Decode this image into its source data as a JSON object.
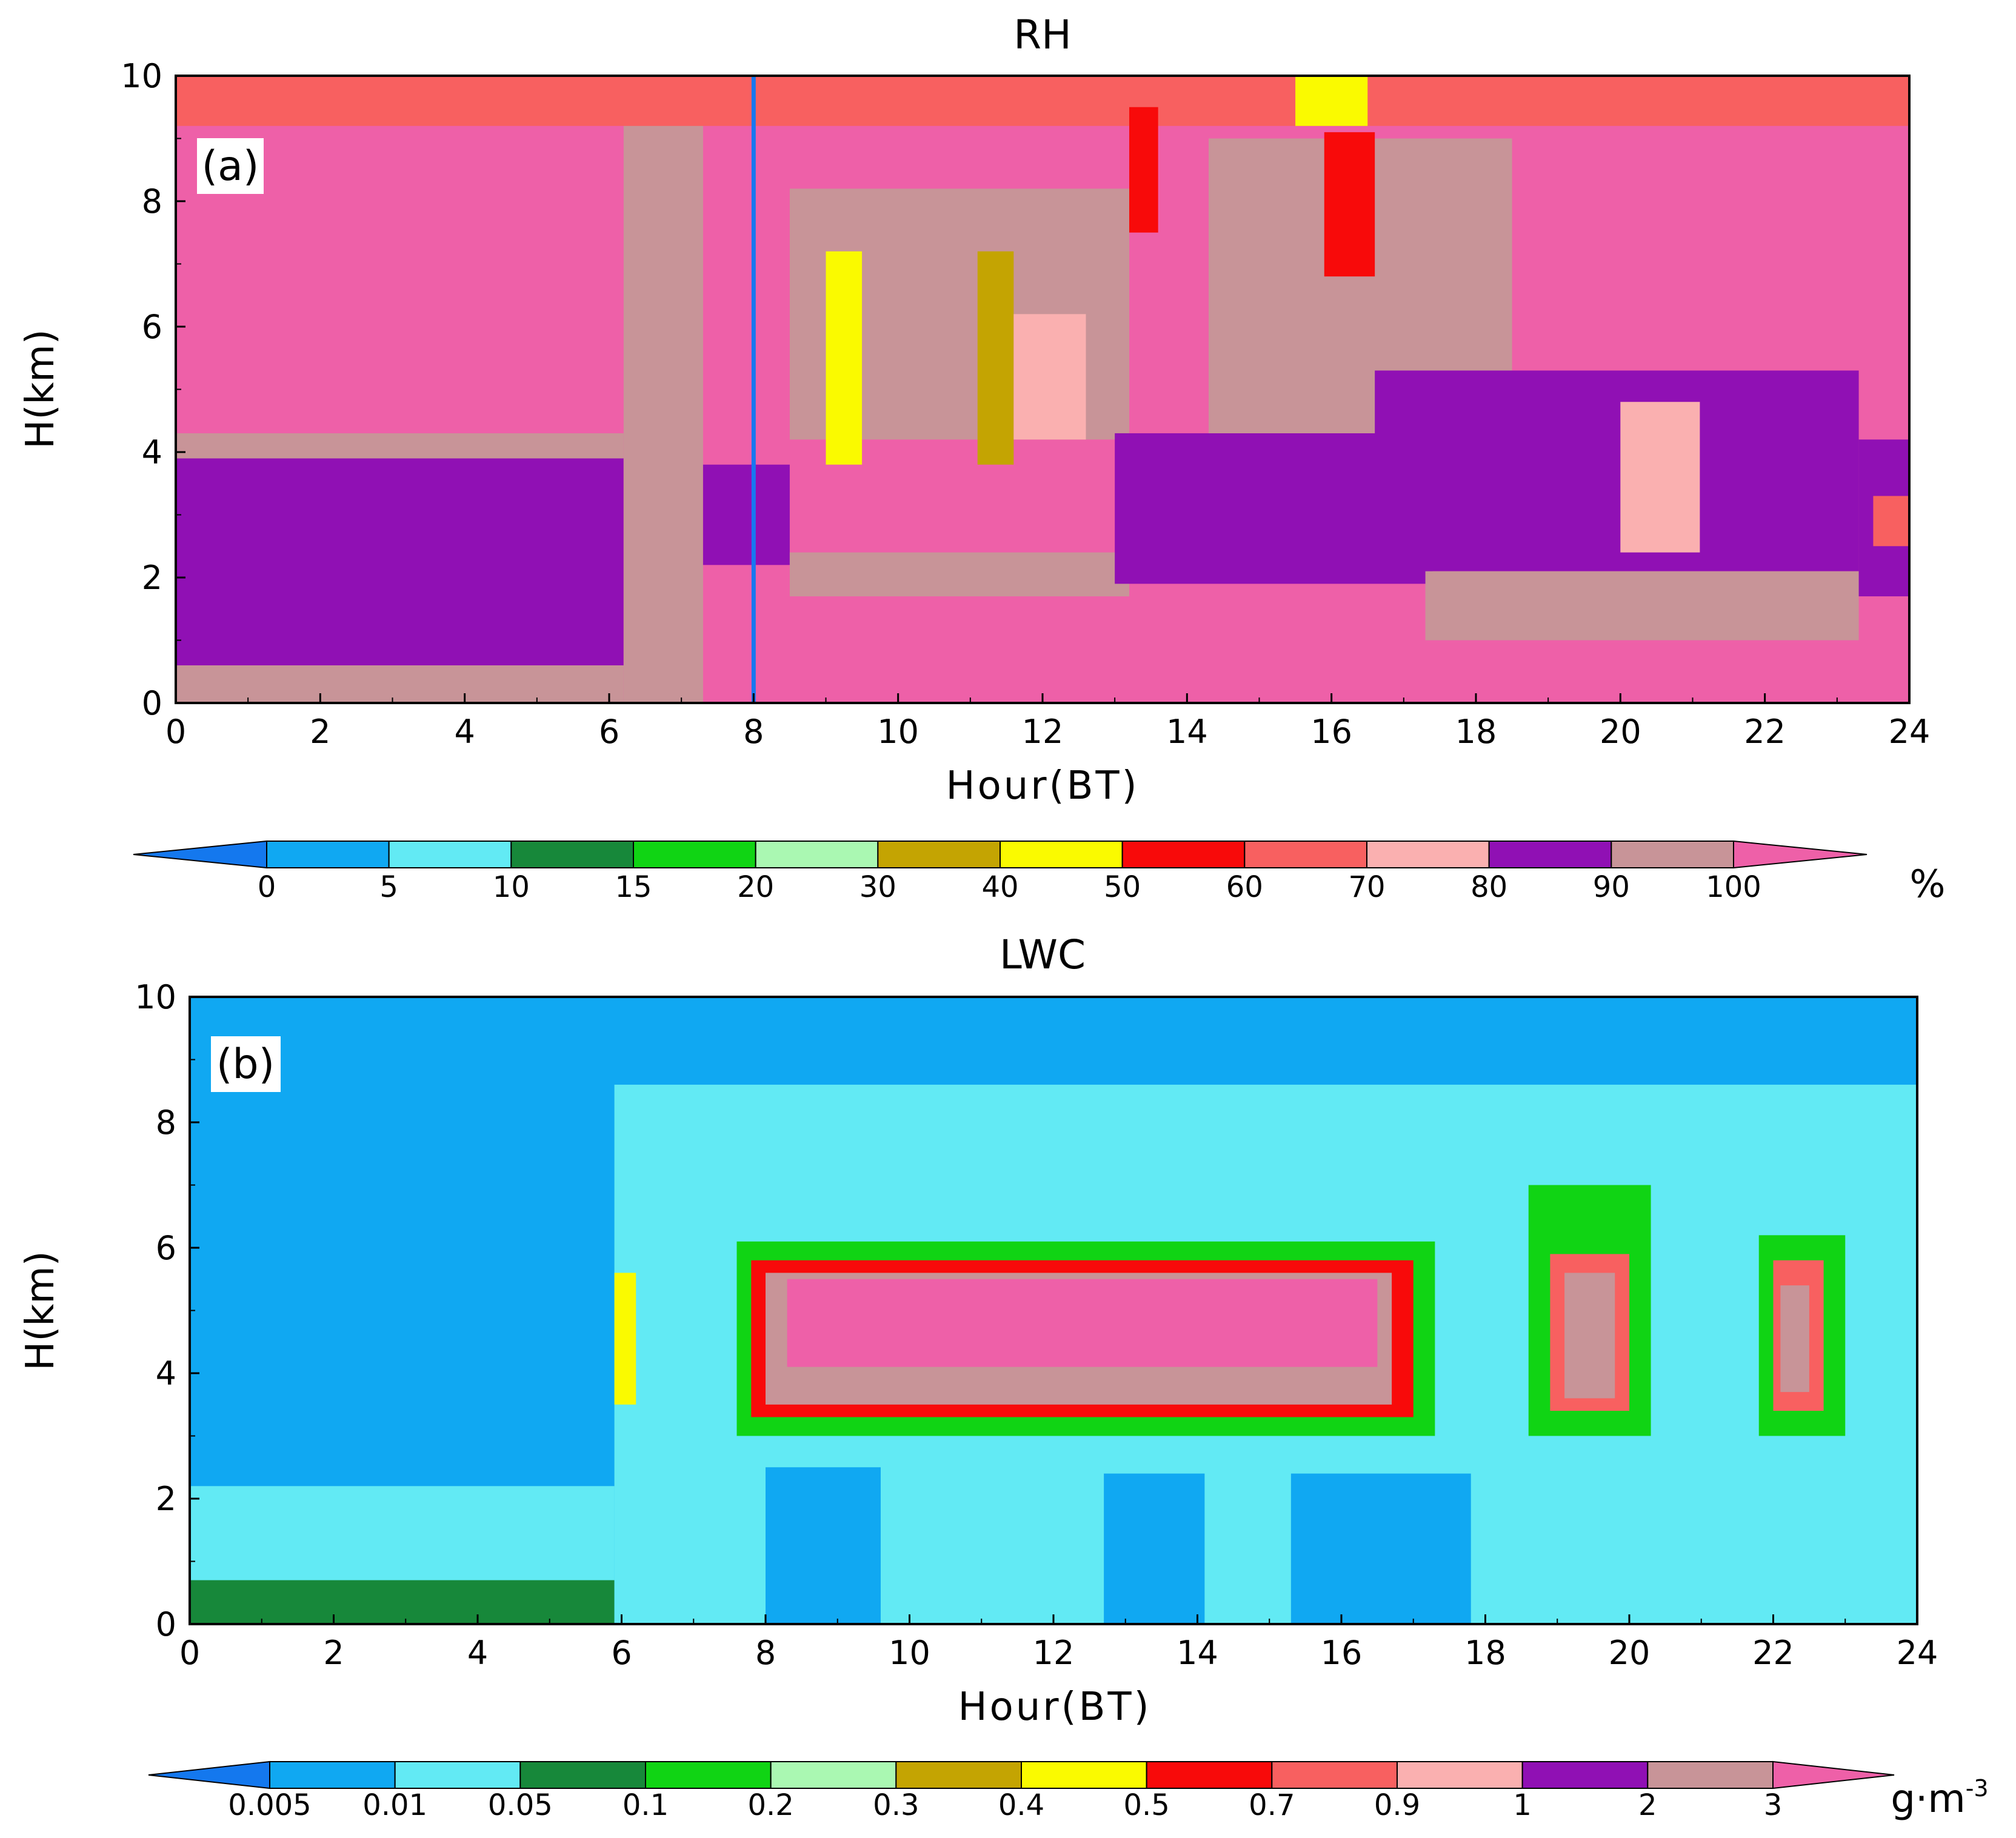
{
  "chart_data": [
    {
      "type": "heatmap",
      "title": "RH",
      "panel_label": "(a)",
      "xlabel": "Hour(BT)",
      "ylabel": "H(km)",
      "xlim": [
        0,
        24
      ],
      "ylim": [
        0,
        10
      ],
      "xticks": [
        "0",
        "2",
        "4",
        "6",
        "8",
        "10",
        "12",
        "14",
        "16",
        "18",
        "20",
        "22",
        "24"
      ],
      "yticks": [
        "0",
        "2",
        "4",
        "6",
        "8",
        "10"
      ],
      "colorbar": {
        "labels": [
          "0",
          "5",
          "10",
          "15",
          "20",
          "30",
          "40",
          "50",
          "60",
          "70",
          "80",
          "90",
          "100"
        ],
        "unit": "%",
        "colors": [
          "#1478ee",
          "#10a8f2",
          "#62eaf4",
          "#17883a",
          "#10d414",
          "#aaf8b2",
          "#c4a402",
          "#fafa00",
          "#f80a0a",
          "#f86060",
          "#fab0b0",
          "#9010b4",
          "#c89498",
          "#ee60a8"
        ]
      },
      "marker_line": {
        "x": 8,
        "color": "#1878f0"
      },
      "regions": [
        {
          "x": [
            0,
            6.2
          ],
          "y": [
            0,
            0.6
          ],
          "level": "90"
        },
        {
          "x": [
            0,
            6.2
          ],
          "y": [
            0.6,
            3.9
          ],
          "level": "80"
        },
        {
          "x": [
            0,
            6.2
          ],
          "y": [
            3.9,
            4.3
          ],
          "level": "90"
        },
        {
          "x": [
            6.2,
            7.3
          ],
          "y": [
            0,
            10
          ],
          "level": "90"
        },
        {
          "x": [
            7.3,
            8.5
          ],
          "y": [
            2.2,
            3.8
          ],
          "level": "80"
        },
        {
          "x": [
            8.5,
            13.2
          ],
          "y": [
            1.7,
            2.4
          ],
          "level": "90"
        },
        {
          "x": [
            8.5,
            13.2
          ],
          "y": [
            4.2,
            8.2
          ],
          "level": "90"
        },
        {
          "x": [
            9.0,
            9.5
          ],
          "y": [
            3.8,
            7.2
          ],
          "level": "40"
        },
        {
          "x": [
            11.1,
            11.6
          ],
          "y": [
            3.8,
            7.2
          ],
          "level": "30"
        },
        {
          "x": [
            11.6,
            12.6
          ],
          "y": [
            4.2,
            6.2
          ],
          "level": "70"
        },
        {
          "x": [
            13.0,
            17.4
          ],
          "y": [
            1.9,
            4.3
          ],
          "level": "80"
        },
        {
          "x": [
            14.3,
            18.5
          ],
          "y": [
            4.3,
            9.0
          ],
          "level": "90"
        },
        {
          "x": [
            15.9,
            16.6
          ],
          "y": [
            6.8,
            9.1
          ],
          "level": "50"
        },
        {
          "x": [
            16.6,
            23.3
          ],
          "y": [
            2.1,
            5.3
          ],
          "level": "80"
        },
        {
          "x": [
            17.3,
            23.3
          ],
          "y": [
            1.0,
            2.1
          ],
          "level": "90"
        },
        {
          "x": [
            20.0,
            21.1
          ],
          "y": [
            2.4,
            4.8
          ],
          "level": "70"
        },
        {
          "x": [
            23.3,
            24
          ],
          "y": [
            1.7,
            4.2
          ],
          "level": "80"
        },
        {
          "x": [
            23.5,
            24
          ],
          "y": [
            2.5,
            3.3
          ],
          "level": "60"
        },
        {
          "x": [
            0,
            24
          ],
          "y": [
            9.2,
            10
          ],
          "level": "60"
        },
        {
          "x": [
            13.2,
            13.6
          ],
          "y": [
            7.5,
            9.5
          ],
          "level": "50"
        },
        {
          "x": [
            15.5,
            16.5
          ],
          "y": [
            9.2,
            10
          ],
          "level": "40"
        }
      ]
    },
    {
      "type": "heatmap",
      "title": "LWC",
      "panel_label": "(b)",
      "xlabel": "Hour(BT)",
      "ylabel": "H(km)",
      "xlim": [
        0,
        24
      ],
      "ylim": [
        0,
        10
      ],
      "xticks": [
        "0",
        "2",
        "4",
        "6",
        "8",
        "10",
        "12",
        "14",
        "16",
        "18",
        "20",
        "22",
        "24"
      ],
      "yticks": [
        "0",
        "2",
        "4",
        "6",
        "8",
        "10"
      ],
      "colorbar": {
        "labels": [
          "0.005",
          "0.01",
          "0.05",
          "0.1",
          "0.2",
          "0.3",
          "0.4",
          "0.5",
          "0.7",
          "0.9",
          "1",
          "2",
          "3"
        ],
        "unit": "g·m",
        "unit_sup": "-3",
        "colors": [
          "#1478ee",
          "#10a8f2",
          "#62eaf4",
          "#17883a",
          "#10d414",
          "#aaf8b2",
          "#c4a402",
          "#fafa00",
          "#f80a0a",
          "#f86060",
          "#fab0b0",
          "#9010b4",
          "#c89498",
          "#ee60a8"
        ]
      },
      "regions": [
        {
          "x": [
            0,
            5.9
          ],
          "y": [
            0,
            2.2
          ],
          "level": "0.01"
        },
        {
          "x": [
            0,
            5.9
          ],
          "y": [
            0,
            0.7
          ],
          "level": "0.05"
        },
        {
          "x": [
            5.9,
            24
          ],
          "y": [
            0,
            8.6
          ],
          "level": "0.01"
        },
        {
          "x": [
            7.6,
            17.3
          ],
          "y": [
            3.0,
            6.1
          ],
          "level": "0.1"
        },
        {
          "x": [
            7.8,
            17.0
          ],
          "y": [
            3.3,
            5.8
          ],
          "level": "0.5"
        },
        {
          "x": [
            8.0,
            16.7
          ],
          "y": [
            3.5,
            5.6
          ],
          "level": "2"
        },
        {
          "x": [
            8.3,
            16.5
          ],
          "y": [
            4.1,
            5.5
          ],
          "level": "3"
        },
        {
          "x": [
            8.0,
            9.6
          ],
          "y": [
            0,
            2.5
          ],
          "level": "0.005"
        },
        {
          "x": [
            12.7,
            14.1
          ],
          "y": [
            0,
            2.4
          ],
          "level": "0.005"
        },
        {
          "x": [
            15.3,
            17.8
          ],
          "y": [
            0,
            2.4
          ],
          "level": "0.005"
        },
        {
          "x": [
            18.6,
            20.3
          ],
          "y": [
            3.0,
            7.0
          ],
          "level": "0.1"
        },
        {
          "x": [
            18.9,
            20.0
          ],
          "y": [
            3.4,
            5.9
          ],
          "level": "0.7"
        },
        {
          "x": [
            19.1,
            19.8
          ],
          "y": [
            3.6,
            5.6
          ],
          "level": "2"
        },
        {
          "x": [
            21.8,
            23.0
          ],
          "y": [
            3.0,
            6.2
          ],
          "level": "0.1"
        },
        {
          "x": [
            22.0,
            22.7
          ],
          "y": [
            3.4,
            5.8
          ],
          "level": "0.7"
        },
        {
          "x": [
            22.1,
            22.5
          ],
          "y": [
            3.7,
            5.4
          ],
          "level": "2"
        },
        {
          "x": [
            5.9,
            6.2
          ],
          "y": [
            3.5,
            5.6
          ],
          "level": "0.4"
        }
      ]
    }
  ]
}
